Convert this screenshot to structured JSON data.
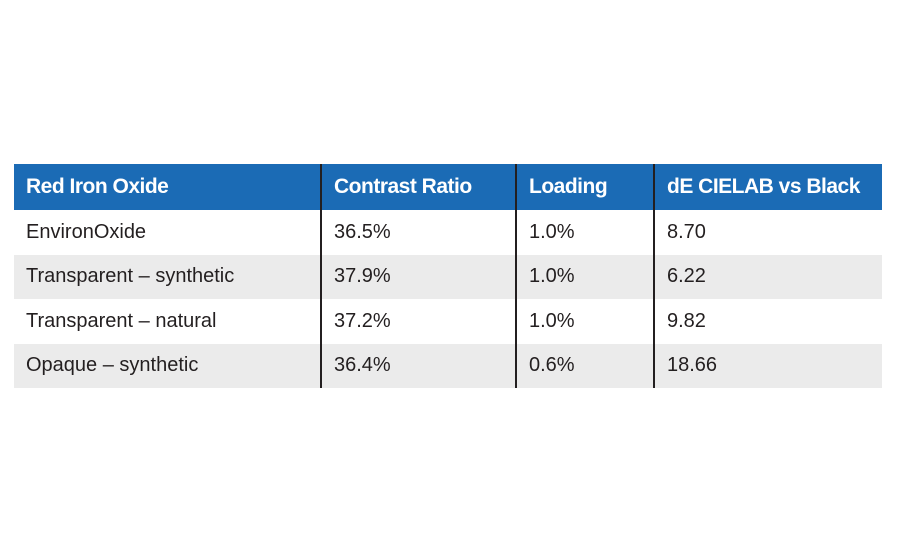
{
  "table": {
    "header": [
      "Red Iron Oxide",
      "Contrast Ratio",
      "Loading",
      "dE CIELAB vs Black"
    ],
    "rows": [
      [
        "EnvironOxide",
        "36.5%",
        "1.0%",
        "8.70"
      ],
      [
        "Transparent – synthetic",
        "37.9%",
        "1.0%",
        "6.22"
      ],
      [
        "Transparent – natural",
        "37.2%",
        "1.0%",
        "9.82"
      ],
      [
        "Opaque – synthetic",
        "36.4%",
        "0.6%",
        "18.66"
      ]
    ]
  }
}
